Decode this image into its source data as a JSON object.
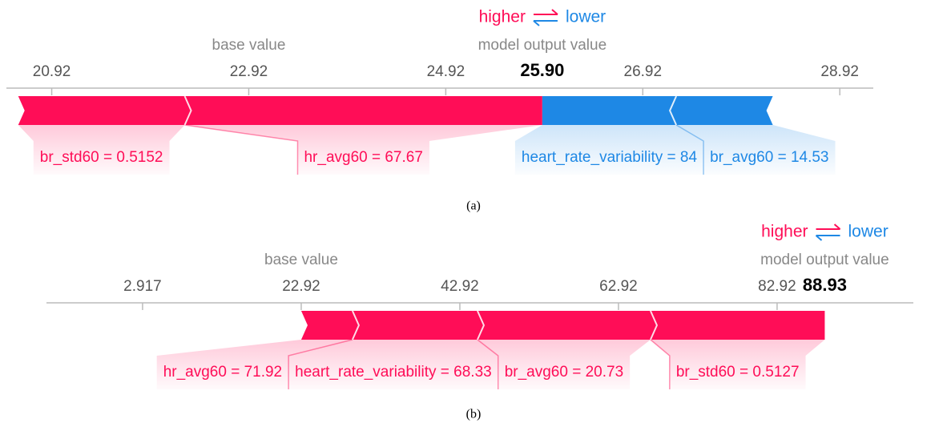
{
  "chart_data": [
    {
      "type": "force",
      "caption": "(a)",
      "higher_label": "higher",
      "lower_label": "lower",
      "base_label": "base value",
      "output_title": "model output value",
      "base_value": 22.92,
      "output": {
        "value": 25.9,
        "label": "25.90"
      },
      "positive_color": "#ff0d57",
      "negative_color": "#1e88e5",
      "xlim": [
        20.46,
        29.26
      ],
      "xticks": [
        20.92,
        22.92,
        24.92,
        26.92,
        28.92
      ],
      "features": [
        {
          "label": "br_std60 = 0.5152",
          "effect": 1.69
        },
        {
          "label": "hr_avg60 = 67.67",
          "effect": 3.63
        },
        {
          "label": "heart_rate_variability = 84",
          "effect": -1.36
        },
        {
          "label": "br_avg60 = 14.53",
          "effect": -0.98
        }
      ]
    },
    {
      "type": "force",
      "caption": "(b)",
      "higher_label": "higher",
      "lower_label": "lower",
      "base_label": "base value",
      "output_title": "model output value",
      "base_value": 22.92,
      "output": {
        "value": 88.93,
        "label": "88.93"
      },
      "positive_color": "#ff0d57",
      "negative_color": "#1e88e5",
      "xlim": [
        -9.2,
        100.1
      ],
      "xticks": [
        2.917,
        22.92,
        42.92,
        62.92,
        82.92
      ],
      "features": [
        {
          "label": "hr_avg60 = 71.92",
          "effect": 6.46
        },
        {
          "label": "heart_rate_variability = 68.33",
          "effect": 15.76
        },
        {
          "label": "br_avg60 = 20.73",
          "effect": 21.82
        },
        {
          "label": "br_std60 = 0.5127",
          "effect": 21.97
        }
      ]
    }
  ]
}
